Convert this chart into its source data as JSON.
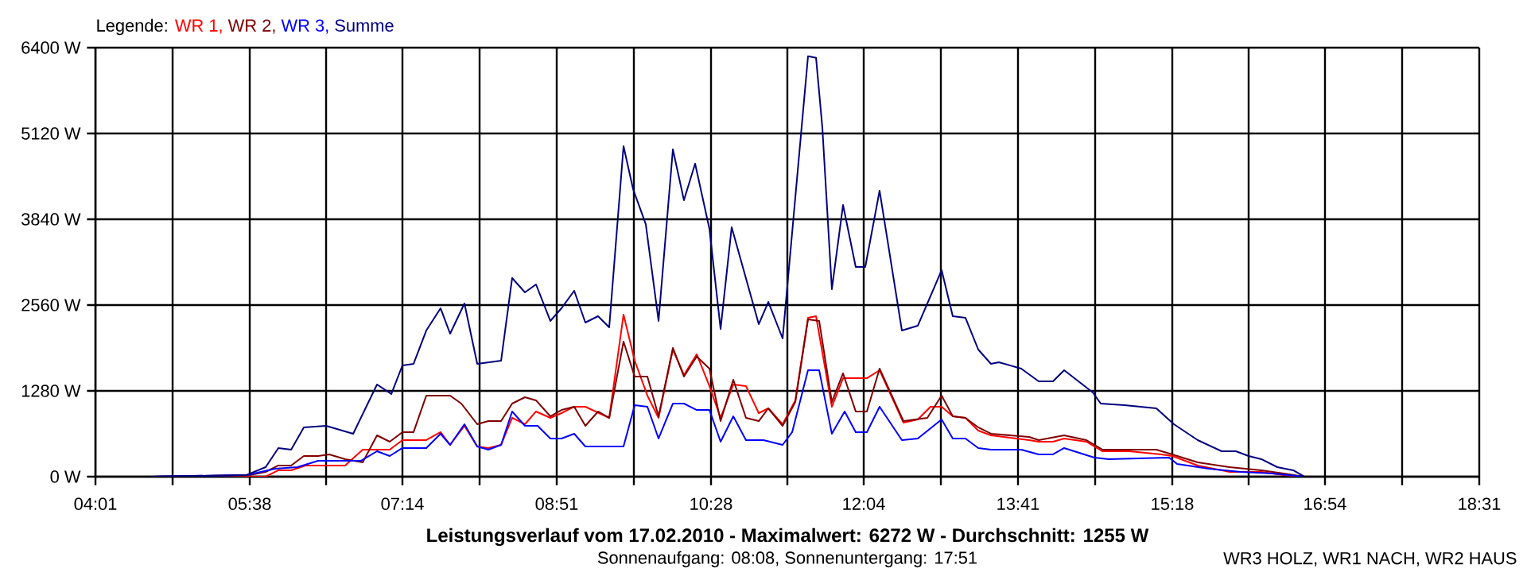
{
  "chart_data": {
    "type": "line",
    "title": "**Leistungsverlauf vom 17.02.2010 - Maximalwert: 6272 W - Durchschnitt: 1255 W**",
    "subtitle": "Sonnenaufgang: 08:08, Sonnenuntergang: 17:51",
    "annotations": [
      "WR3 HOLZ, WR1 NACH, WR2 HAUS"
    ],
    "legend_title": "Legende:",
    "legend": "top left",
    "grid": true,
    "xlim": [
      4.0167,
      18.5167
    ],
    "ylim": [
      0,
      6400
    ],
    "xticks": [
      {
        "value": 4.0167,
        "label": "04:01"
      },
      {
        "value": 4.825,
        "label": null
      },
      {
        "value": 5.6333,
        "label": "05:38"
      },
      {
        "value": 6.4333,
        "label": null
      },
      {
        "value": 7.2333,
        "label": "07:14"
      },
      {
        "value": 8.0417,
        "label": null
      },
      {
        "value": 8.85,
        "label": "08:51"
      },
      {
        "value": 9.6583,
        "label": null
      },
      {
        "value": 10.4667,
        "label": "10:28"
      },
      {
        "value": 11.2667,
        "label": null
      },
      {
        "value": 12.0667,
        "label": "12:04"
      },
      {
        "value": 12.875,
        "label": null
      },
      {
        "value": 13.6833,
        "label": "13:41"
      },
      {
        "value": 14.4917,
        "label": null
      },
      {
        "value": 15.3,
        "label": "15:18"
      },
      {
        "value": 16.1,
        "label": null
      },
      {
        "value": 16.9,
        "label": "16:54"
      },
      {
        "value": 17.7083,
        "label": null
      },
      {
        "value": 18.5167,
        "label": "18:31"
      }
    ],
    "yticks": [
      {
        "value": 0,
        "label": "0 W"
      },
      {
        "value": 1280,
        "label": "1280 W"
      },
      {
        "value": 2560,
        "label": "2560 W"
      },
      {
        "value": 3840,
        "label": "3840 W"
      },
      {
        "value": 5120,
        "label": "5120 W"
      },
      {
        "value": 6400,
        "label": "6400 W"
      }
    ],
    "series": [
      {
        "name": "WR 1,",
        "color": "#ff0000",
        "x": [
          4.6,
          5.6,
          5.8,
          5.933,
          6.067,
          6.217,
          6.4,
          6.633,
          6.817,
          7.1,
          7.233,
          7.483,
          7.633,
          7.733,
          7.883,
          8.017,
          8.133,
          8.267,
          8.383,
          8.517,
          8.633,
          8.783,
          8.9,
          9.033,
          9.15,
          9.4,
          9.55,
          9.667,
          9.8,
          9.917,
          10.067,
          10.183,
          10.317,
          10.45,
          10.567,
          10.7,
          10.833,
          10.967,
          11.067,
          11.217,
          11.35,
          11.483,
          11.567,
          11.733,
          11.85,
          11.983,
          12.1,
          12.233,
          12.483,
          12.633,
          12.767,
          12.883,
          13.0,
          13.133,
          13.267,
          13.4,
          13.8,
          13.9,
          14.05,
          14.167,
          14.4,
          14.567,
          14.85,
          15.183,
          15.3,
          15.567,
          15.9,
          16.233,
          16.467,
          16.683
        ],
        "values": [
          0,
          0,
          0,
          95,
          95,
          166,
          166,
          166,
          403,
          403,
          545,
          545,
          664,
          474,
          758,
          450,
          427,
          474,
          877,
          782,
          972,
          877,
          948,
          1043,
          1043,
          877,
          2418,
          1730,
          1209,
          877,
          1896,
          1517,
          1825,
          1351,
          877,
          1375,
          1351,
          948,
          1019,
          782,
          1138,
          2370,
          2394,
          1043,
          1469,
          1469,
          1469,
          1588,
          806,
          853,
          1043,
          1043,
          900,
          877,
          687,
          616,
          545,
          521,
          521,
          569,
          521,
          379,
          379,
          332,
          308,
          166,
          71,
          71,
          24,
          0
        ]
      },
      {
        "name": "WR 2,",
        "color": "#800000",
        "x": [
          4.6,
          5.633,
          5.8,
          5.933,
          6.067,
          6.2,
          6.35,
          6.467,
          6.633,
          6.817,
          6.967,
          7.1,
          7.233,
          7.35,
          7.483,
          7.733,
          7.85,
          8.017,
          8.133,
          8.267,
          8.383,
          8.517,
          8.633,
          8.783,
          8.9,
          9.033,
          9.15,
          9.283,
          9.4,
          9.55,
          9.667,
          9.8,
          9.917,
          10.067,
          10.183,
          10.317,
          10.45,
          10.567,
          10.7,
          10.833,
          10.967,
          11.067,
          11.217,
          11.35,
          11.483,
          11.6,
          11.733,
          11.85,
          11.983,
          12.1,
          12.233,
          12.483,
          12.733,
          12.883,
          13.0,
          13.133,
          13.267,
          13.4,
          13.8,
          13.9,
          14.167,
          14.4,
          14.567,
          15.133,
          15.3,
          15.567,
          15.9,
          16.233,
          16.467,
          16.683
        ],
        "values": [
          0,
          24,
          71,
          166,
          166,
          308,
          308,
          332,
          261,
          213,
          616,
          521,
          664,
          664,
          1209,
          1209,
          1090,
          782,
          829,
          829,
          1090,
          1185,
          1138,
          900,
          995,
          1043,
          758,
          972,
          877,
          2014,
          1493,
          1493,
          900,
          1920,
          1493,
          1793,
          1612,
          829,
          1446,
          877,
          829,
          1019,
          758,
          1114,
          2346,
          2323,
          1114,
          1541,
          972,
          972,
          1612,
          829,
          877,
          1209,
          900,
          877,
          735,
          640,
          593,
          545,
          616,
          545,
          403,
          403,
          332,
          213,
          142,
          95,
          47,
          0
        ]
      },
      {
        "name": "WR 3,",
        "color": "#0000ff",
        "x": [
          4.6,
          5.6,
          5.9,
          6.133,
          6.35,
          6.633,
          6.8,
          6.967,
          7.1,
          7.233,
          7.483,
          7.633,
          7.733,
          7.883,
          8.017,
          8.133,
          8.267,
          8.383,
          8.517,
          8.65,
          8.783,
          8.9,
          9.033,
          9.15,
          9.55,
          9.667,
          9.8,
          9.917,
          10.067,
          10.183,
          10.317,
          10.45,
          10.567,
          10.7,
          10.833,
          11.017,
          11.217,
          11.317,
          11.483,
          11.6,
          11.733,
          11.867,
          11.983,
          12.1,
          12.233,
          12.467,
          12.633,
          12.883,
          13.0,
          13.133,
          13.267,
          13.4,
          13.717,
          13.9,
          14.05,
          14.167,
          14.483,
          14.633,
          15.267,
          15.35,
          15.683,
          16.017,
          16.35,
          16.683
        ],
        "values": [
          0,
          24,
          118,
          142,
          237,
          237,
          237,
          379,
          308,
          427,
          427,
          640,
          474,
          782,
          450,
          403,
          474,
          972,
          758,
          758,
          569,
          569,
          640,
          450,
          450,
          1066,
          1043,
          569,
          1090,
          1090,
          995,
          995,
          521,
          900,
          545,
          545,
          474,
          664,
          1588,
          1588,
          640,
          972,
          664,
          664,
          1043,
          545,
          569,
          853,
          569,
          569,
          427,
          403,
          403,
          332,
          332,
          427,
          284,
          261,
          284,
          190,
          118,
          71,
          47,
          0
        ]
      },
      {
        "name": "Summe",
        "color": "#000080",
        "x": [
          4.6,
          5.6,
          5.8,
          5.933,
          6.067,
          6.2,
          6.433,
          6.717,
          6.967,
          7.117,
          7.233,
          7.35,
          7.483,
          7.633,
          7.733,
          7.883,
          8.017,
          8.267,
          8.383,
          8.517,
          8.633,
          8.783,
          8.9,
          9.033,
          9.15,
          9.283,
          9.4,
          9.55,
          9.65,
          9.783,
          9.917,
          10.067,
          10.183,
          10.3,
          10.45,
          10.567,
          10.683,
          10.967,
          11.067,
          11.217,
          11.483,
          11.567,
          11.633,
          11.733,
          11.85,
          11.983,
          12.083,
          12.233,
          12.467,
          12.633,
          12.883,
          13.0,
          13.133,
          13.267,
          13.4,
          13.483,
          13.717,
          13.9,
          14.05,
          14.167,
          14.467,
          14.55,
          14.8,
          15.133,
          15.317,
          15.567,
          15.817,
          15.967,
          16.1,
          16.233,
          16.4,
          16.567,
          16.683
        ],
        "values": [
          0,
          24,
          142,
          427,
          403,
          735,
          758,
          640,
          1375,
          1233,
          1659,
          1683,
          2180,
          2512,
          2133,
          2583,
          1683,
          1730,
          2963,
          2749,
          2868,
          2323,
          2512,
          2773,
          2299,
          2394,
          2228,
          4930,
          4290,
          3768,
          2323,
          4882,
          4124,
          4669,
          3697,
          2204,
          3721,
          2275,
          2607,
          2062,
          6272,
          6250,
          5214,
          2797,
          4053,
          3128,
          3128,
          4266,
          2180,
          2251,
          3081,
          2393,
          2370,
          1896,
          1683,
          1706,
          1612,
          1422,
          1422,
          1588,
          1256,
          1090,
          1066,
          1019,
          782,
          545,
          379,
          379,
          308,
          261,
          142,
          95,
          0
        ]
      }
    ]
  }
}
